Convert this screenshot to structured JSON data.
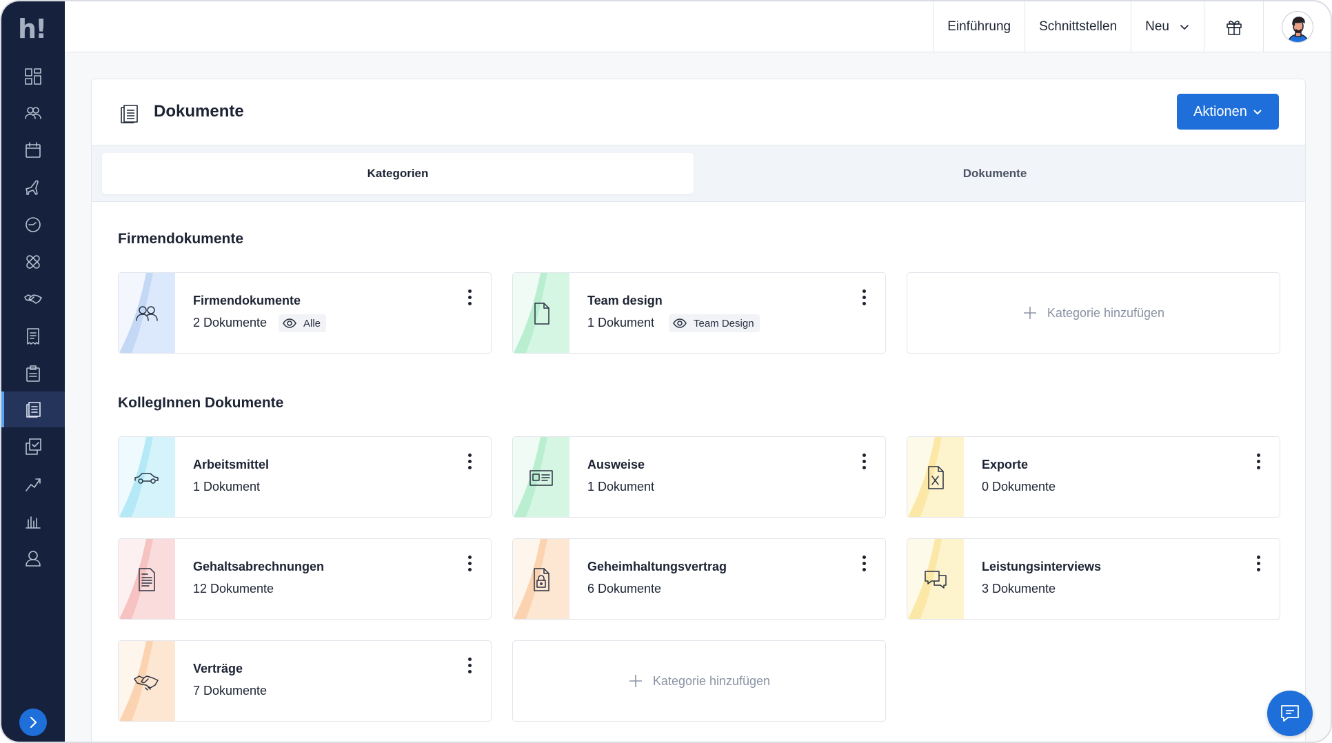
{
  "app": {
    "logo": "h!"
  },
  "sidebar": {
    "items": [
      {
        "name": "dashboard-icon"
      },
      {
        "name": "people-icon"
      },
      {
        "name": "calendar-icon"
      },
      {
        "name": "plane-icon"
      },
      {
        "name": "clock-icon"
      },
      {
        "name": "bandage-icon"
      },
      {
        "name": "handshake-icon"
      },
      {
        "name": "receipt-icon"
      },
      {
        "name": "clipboard-icon"
      },
      {
        "name": "documents-icon",
        "active": true
      },
      {
        "name": "checklist-icon"
      },
      {
        "name": "growth-icon"
      },
      {
        "name": "chart-icon"
      },
      {
        "name": "person-icon"
      }
    ]
  },
  "topbar": {
    "intro": "Einführung",
    "interfaces": "Schnittstellen",
    "new": "Neu"
  },
  "header": {
    "title": "Dokumente",
    "actions": "Aktionen"
  },
  "tabs": [
    {
      "label": "Kategorien",
      "active": true
    },
    {
      "label": "Dokumente",
      "active": false
    }
  ],
  "sections": {
    "company": {
      "title": "Firmendokumente",
      "cards": [
        {
          "name": "Firmendokumente",
          "count": "2 Dokumente",
          "badge": "Alle",
          "icon": "people-icon"
        },
        {
          "name": "Team design",
          "count": "1 Dokument",
          "badge": "Team Design",
          "icon": "file-icon"
        }
      ],
      "add_label": "Kategorie hinzufügen"
    },
    "colleagues": {
      "title": "KollegInnen Dokumente",
      "cards": [
        {
          "name": "Arbeitsmittel",
          "count": "1 Dokument",
          "icon": "car-icon"
        },
        {
          "name": "Ausweise",
          "count": "1 Dokument",
          "icon": "id-card-icon"
        },
        {
          "name": "Exporte",
          "count": "0 Dokumente",
          "icon": "excel-file-icon"
        },
        {
          "name": "Gehaltsabrechnungen",
          "count": "12 Dokumente",
          "icon": "receipt-icon"
        },
        {
          "name": "Geheimhaltungsvertrag",
          "count": "6 Dokumente",
          "icon": "locked-file-icon"
        },
        {
          "name": "Leistungsinterviews",
          "count": "3 Dokumente",
          "icon": "chat-bubbles-icon"
        },
        {
          "name": "Verträge",
          "count": "7 Dokumente",
          "icon": "handshake-icon"
        }
      ],
      "add_label": "Kategorie hinzufügen"
    }
  },
  "colors": {
    "sidebar": "#15213d",
    "accent": "#1e6fd9",
    "thumb_blue": "#dce8fb",
    "thumb_green": "#d6f6e4",
    "thumb_cyan": "#d4f3fb",
    "thumb_yellow": "#fdf3cc",
    "thumb_red": "#fbdcdc",
    "thumb_orange": "#fde6d2"
  }
}
